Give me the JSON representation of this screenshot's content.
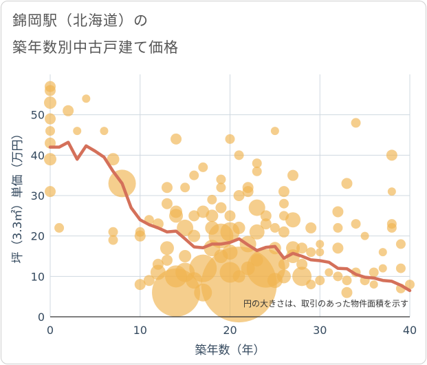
{
  "title_line1": "錦岡駅（北海道）の",
  "title_line2": "築年数別中古戸建て価格",
  "chart_data": {
    "type": "scatter",
    "xlabel": "築年数（年）",
    "ylabel": "坪（3.3㎡）単価（万円）",
    "xlim": [
      0,
      40
    ],
    "ylim": [
      0,
      60
    ],
    "xticks": [
      0,
      10,
      20,
      30,
      40
    ],
    "yticks": [
      0,
      10,
      20,
      30,
      40,
      50
    ],
    "grid": true,
    "annotation": "円の大きさは、取引のあった物件面積を示す",
    "colors": {
      "bubble": "#f0b350",
      "line": "#d4705a",
      "grid": "#cfd8e0",
      "axis_text": "#34495e"
    },
    "bubbles": [
      {
        "x": 0,
        "y": 57,
        "s": 8
      },
      {
        "x": 0,
        "y": 56,
        "s": 8
      },
      {
        "x": 0,
        "y": 53,
        "s": 9
      },
      {
        "x": 0,
        "y": 49,
        "s": 8
      },
      {
        "x": 0,
        "y": 46,
        "s": 7
      },
      {
        "x": 0,
        "y": 43,
        "s": 8
      },
      {
        "x": 0,
        "y": 39,
        "s": 9
      },
      {
        "x": 0,
        "y": 31,
        "s": 8
      },
      {
        "x": 1,
        "y": 22,
        "s": 7
      },
      {
        "x": 2,
        "y": 51,
        "s": 8
      },
      {
        "x": 3,
        "y": 46,
        "s": 6
      },
      {
        "x": 4,
        "y": 54,
        "s": 6
      },
      {
        "x": 6,
        "y": 46,
        "s": 6
      },
      {
        "x": 7,
        "y": 39,
        "s": 9
      },
      {
        "x": 7,
        "y": 21,
        "s": 7
      },
      {
        "x": 7,
        "y": 19,
        "s": 7
      },
      {
        "x": 8,
        "y": 33,
        "s": 20
      },
      {
        "x": 10,
        "y": 20,
        "s": 8
      },
      {
        "x": 10,
        "y": 21,
        "s": 7
      },
      {
        "x": 10,
        "y": 8,
        "s": 8
      },
      {
        "x": 11,
        "y": 24,
        "s": 7
      },
      {
        "x": 11,
        "y": 9,
        "s": 8
      },
      {
        "x": 12,
        "y": 23,
        "s": 8
      },
      {
        "x": 12,
        "y": 13,
        "s": 8
      },
      {
        "x": 12,
        "y": 11,
        "s": 11
      },
      {
        "x": 13,
        "y": 32,
        "s": 8
      },
      {
        "x": 13,
        "y": 28,
        "s": 8
      },
      {
        "x": 13,
        "y": 17,
        "s": 10
      },
      {
        "x": 13,
        "y": 14,
        "s": 8
      },
      {
        "x": 14,
        "y": 44,
        "s": 8
      },
      {
        "x": 14,
        "y": 26,
        "s": 9
      },
      {
        "x": 14,
        "y": 25,
        "s": 10
      },
      {
        "x": 14,
        "y": 10,
        "s": 16
      },
      {
        "x": 14,
        "y": 6,
        "s": 35
      },
      {
        "x": 15,
        "y": 32,
        "s": 7
      },
      {
        "x": 15,
        "y": 22,
        "s": 12
      },
      {
        "x": 15,
        "y": 15,
        "s": 9
      },
      {
        "x": 15,
        "y": 11,
        "s": 14
      },
      {
        "x": 16,
        "y": 35,
        "s": 7
      },
      {
        "x": 16,
        "y": 25,
        "s": 8
      },
      {
        "x": 16,
        "y": 20,
        "s": 9
      },
      {
        "x": 16,
        "y": 9,
        "s": 12
      },
      {
        "x": 17,
        "y": 37,
        "s": 7
      },
      {
        "x": 17,
        "y": 26,
        "s": 9
      },
      {
        "x": 17,
        "y": 6,
        "s": 13
      },
      {
        "x": 17,
        "y": 12,
        "s": 20
      },
      {
        "x": 18,
        "y": 29,
        "s": 7
      },
      {
        "x": 18,
        "y": 25,
        "s": 9
      },
      {
        "x": 18,
        "y": 22,
        "s": 10
      },
      {
        "x": 18,
        "y": 17,
        "s": 12
      },
      {
        "x": 19,
        "y": 34,
        "s": 7
      },
      {
        "x": 19,
        "y": 32,
        "s": 7
      },
      {
        "x": 19,
        "y": 27,
        "s": 8
      },
      {
        "x": 19,
        "y": 20,
        "s": 18
      },
      {
        "x": 19,
        "y": 15,
        "s": 10
      },
      {
        "x": 20,
        "y": 44,
        "s": 7
      },
      {
        "x": 20,
        "y": 25,
        "s": 8
      },
      {
        "x": 20,
        "y": 21,
        "s": 14
      },
      {
        "x": 20,
        "y": 16,
        "s": 11
      },
      {
        "x": 20,
        "y": 11,
        "s": 15
      },
      {
        "x": 21,
        "y": 40,
        "s": 7
      },
      {
        "x": 21,
        "y": 30,
        "s": 8
      },
      {
        "x": 21,
        "y": 22,
        "s": 9
      },
      {
        "x": 21,
        "y": 10,
        "s": 9
      },
      {
        "x": 21,
        "y": 8,
        "s": 55
      },
      {
        "x": 22,
        "y": 32,
        "s": 8
      },
      {
        "x": 22,
        "y": 31,
        "s": 8
      },
      {
        "x": 22,
        "y": 18,
        "s": 12
      },
      {
        "x": 22,
        "y": 12,
        "s": 10
      },
      {
        "x": 23,
        "y": 38,
        "s": 7
      },
      {
        "x": 23,
        "y": 36,
        "s": 7
      },
      {
        "x": 23,
        "y": 27,
        "s": 12
      },
      {
        "x": 23,
        "y": 21,
        "s": 11
      },
      {
        "x": 23,
        "y": 14,
        "s": 9
      },
      {
        "x": 24,
        "y": 25,
        "s": 8
      },
      {
        "x": 24,
        "y": 23,
        "s": 8
      },
      {
        "x": 24,
        "y": 12,
        "s": 28
      },
      {
        "x": 25,
        "y": 46,
        "s": 6
      },
      {
        "x": 25,
        "y": 22,
        "s": 7
      },
      {
        "x": 25,
        "y": 17,
        "s": 9
      },
      {
        "x": 25,
        "y": 9,
        "s": 11
      },
      {
        "x": 26,
        "y": 31,
        "s": 8
      },
      {
        "x": 26,
        "y": 28,
        "s": 7
      },
      {
        "x": 26,
        "y": 25,
        "s": 7
      },
      {
        "x": 26,
        "y": 21,
        "s": 8
      },
      {
        "x": 26,
        "y": 13,
        "s": 8
      },
      {
        "x": 26,
        "y": 10,
        "s": 10
      },
      {
        "x": 27,
        "y": 35,
        "s": 8
      },
      {
        "x": 27,
        "y": 24,
        "s": 11
      },
      {
        "x": 27,
        "y": 17,
        "s": 10
      },
      {
        "x": 27,
        "y": 15,
        "s": 10
      },
      {
        "x": 28,
        "y": 17,
        "s": 8
      },
      {
        "x": 28,
        "y": 13,
        "s": 8
      },
      {
        "x": 28,
        "y": 10,
        "s": 14
      },
      {
        "x": 29,
        "y": 22,
        "s": 8
      },
      {
        "x": 29,
        "y": 16,
        "s": 7
      },
      {
        "x": 29,
        "y": 8,
        "s": 7
      },
      {
        "x": 30,
        "y": 18,
        "s": 6
      },
      {
        "x": 30,
        "y": 16,
        "s": 6
      },
      {
        "x": 30,
        "y": 9,
        "s": 7
      },
      {
        "x": 31,
        "y": 11,
        "s": 6
      },
      {
        "x": 32,
        "y": 26,
        "s": 8
      },
      {
        "x": 32,
        "y": 22,
        "s": 7
      },
      {
        "x": 32,
        "y": 17,
        "s": 8
      },
      {
        "x": 32,
        "y": 10,
        "s": 7
      },
      {
        "x": 33,
        "y": 33,
        "s": 8
      },
      {
        "x": 33,
        "y": 9,
        "s": 7
      },
      {
        "x": 33,
        "y": 6,
        "s": 8
      },
      {
        "x": 34,
        "y": 48,
        "s": 7
      },
      {
        "x": 34,
        "y": 23,
        "s": 7
      },
      {
        "x": 34,
        "y": 11,
        "s": 7
      },
      {
        "x": 35,
        "y": 20,
        "s": 6
      },
      {
        "x": 35,
        "y": 9,
        "s": 7
      },
      {
        "x": 36,
        "y": 11,
        "s": 7
      },
      {
        "x": 36,
        "y": 8,
        "s": 6
      },
      {
        "x": 37,
        "y": 16,
        "s": 6
      },
      {
        "x": 37,
        "y": 12,
        "s": 6
      },
      {
        "x": 38,
        "y": 40,
        "s": 8
      },
      {
        "x": 38,
        "y": 31,
        "s": 6
      },
      {
        "x": 38,
        "y": 23,
        "s": 7
      },
      {
        "x": 38,
        "y": 22,
        "s": 7
      },
      {
        "x": 39,
        "y": 18,
        "s": 7
      },
      {
        "x": 39,
        "y": 12,
        "s": 7
      },
      {
        "x": 39,
        "y": 7,
        "s": 7
      },
      {
        "x": 40,
        "y": 8,
        "s": 7
      }
    ],
    "line": {
      "x": [
        0,
        1,
        2,
        3,
        4,
        5,
        6,
        7,
        8,
        9,
        10,
        11,
        12,
        13,
        14,
        15,
        16,
        17,
        18,
        19,
        20,
        21,
        22,
        23,
        24,
        25,
        26,
        27,
        28,
        29,
        30,
        31,
        32,
        33,
        34,
        35,
        36,
        37,
        38,
        39,
        40
      ],
      "y": [
        42,
        42,
        43.2,
        39,
        42.3,
        41,
        39.5,
        36,
        33,
        27,
        24,
        22.8,
        22,
        21,
        21.2,
        19.3,
        17.3,
        17.1,
        18,
        18,
        18.4,
        19.3,
        17.8,
        16.4,
        17.2,
        17.4,
        14.5,
        15.7,
        15,
        14.1,
        13.9,
        13.5,
        12,
        11.9,
        10.5,
        9.8,
        9.6,
        9,
        8.8,
        7.8,
        6.5
      ]
    }
  }
}
